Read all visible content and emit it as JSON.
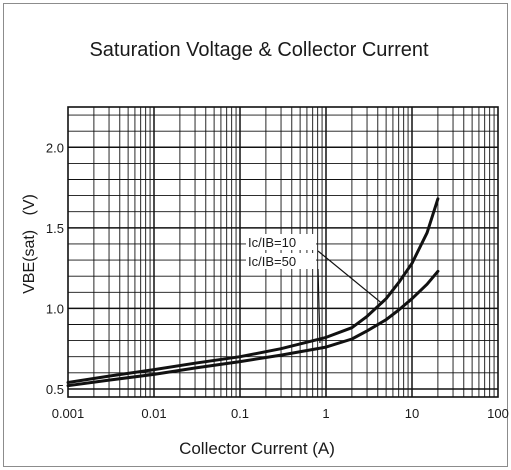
{
  "chart_data": {
    "type": "line",
    "title": "Saturation Voltage & Collector Current",
    "xlabel": "Collector Current (A)",
    "ylabel_main": "VBE(sat)",
    "ylabel_unit": "(V)",
    "x_scale": "log",
    "xlim": [
      0.001,
      100
    ],
    "ylim": [
      0.45,
      2.25
    ],
    "x_ticks": [
      {
        "value": 0.001,
        "label": "0.001"
      },
      {
        "value": 0.01,
        "label": "0.01"
      },
      {
        "value": 0.1,
        "label": "0.1"
      },
      {
        "value": 1,
        "label": "1"
      },
      {
        "value": 10,
        "label": "10"
      },
      {
        "value": 100,
        "label": "100"
      }
    ],
    "y_ticks": [
      {
        "value": 0.5,
        "label": "0.5"
      },
      {
        "value": 1.0,
        "label": "1.0"
      },
      {
        "value": 1.5,
        "label": "1.5"
      },
      {
        "value": 2.0,
        "label": "2.0"
      }
    ],
    "grid": true,
    "series": [
      {
        "name": "Ic/IB=10",
        "x": [
          0.001,
          0.003,
          0.01,
          0.03,
          0.1,
          0.3,
          1,
          2,
          3,
          5,
          7,
          10,
          15,
          20
        ],
        "y": [
          0.54,
          0.58,
          0.62,
          0.66,
          0.7,
          0.75,
          0.82,
          0.88,
          0.95,
          1.06,
          1.16,
          1.28,
          1.47,
          1.68
        ]
      },
      {
        "name": "Ic/IB=50",
        "x": [
          0.001,
          0.003,
          0.01,
          0.03,
          0.1,
          0.3,
          1,
          2,
          3,
          5,
          7,
          10,
          15,
          20
        ],
        "y": [
          0.52,
          0.555,
          0.59,
          0.63,
          0.67,
          0.71,
          0.76,
          0.81,
          0.86,
          0.93,
          0.99,
          1.06,
          1.15,
          1.23
        ]
      }
    ],
    "annotations": [
      "Ic/IB=10",
      "Ic/IB=50"
    ]
  }
}
